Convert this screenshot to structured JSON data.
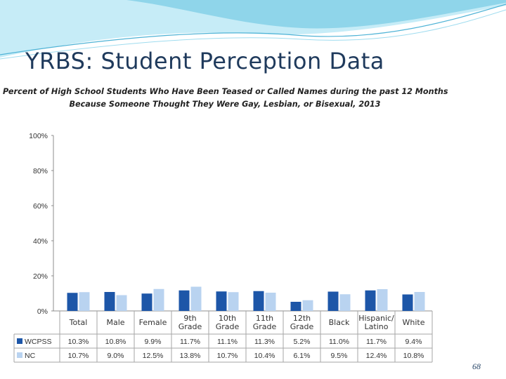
{
  "slide": {
    "title": "YRBS:  Student Perception Data",
    "page_number": "68"
  },
  "colors": {
    "title": "#1f3a5c",
    "wcpss": "#1d56a8",
    "nc": "#b9d3f0",
    "banner_light": "#c6ecf7",
    "banner_dark": "#6bc4df"
  },
  "chart_data": {
    "type": "bar",
    "title_lines": [
      "Percent of High School Students Who Have Been Teased or Called Names during the past 12 Months",
      "Because Someone Thought They Were Gay, Lesbian, or Bisexual, 2013"
    ],
    "categories": [
      [
        "Total"
      ],
      [
        "Male"
      ],
      [
        "Female"
      ],
      [
        "9th",
        "Grade"
      ],
      [
        "10th",
        "Grade"
      ],
      [
        "11th",
        "Grade"
      ],
      [
        "12th",
        "Grade"
      ],
      [
        "Black"
      ],
      [
        "Hispanic/",
        "Latino"
      ],
      [
        "White"
      ]
    ],
    "series": [
      {
        "name": "WCPSS",
        "values": [
          10.3,
          10.8,
          9.9,
          11.7,
          11.1,
          11.3,
          5.2,
          11.0,
          11.7,
          9.4
        ],
        "labels": [
          "10.3%",
          "10.8%",
          "9.9%",
          "11.7%",
          "11.1%",
          "11.3%",
          "5.2%",
          "11.0%",
          "11.7%",
          "9.4%"
        ]
      },
      {
        "name": "NC",
        "values": [
          10.7,
          9.0,
          12.5,
          13.8,
          10.7,
          10.4,
          6.1,
          9.5,
          12.4,
          10.8
        ],
        "labels": [
          "10.7%",
          "9.0%",
          "12.5%",
          "13.8%",
          "10.7%",
          "10.4%",
          "6.1%",
          "9.5%",
          "12.4%",
          "10.8%"
        ]
      }
    ],
    "yticks": [
      "0%",
      "20%",
      "40%",
      "60%",
      "80%",
      "100%"
    ],
    "ylim": [
      0,
      100
    ],
    "grid": false,
    "legend": "data table below chart"
  }
}
